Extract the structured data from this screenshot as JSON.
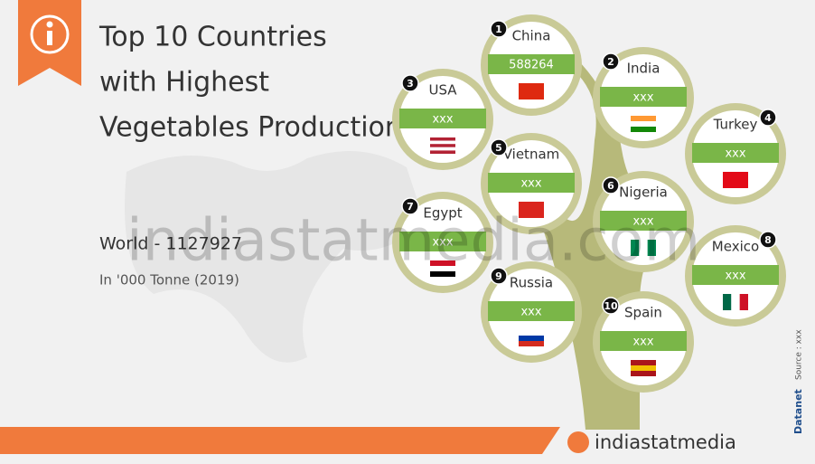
{
  "header": {
    "title_lines": [
      "Top 10 Countries",
      "with Highest",
      "Vegetables Production"
    ]
  },
  "world_total": "World  - 1127927",
  "unit": "In '000 Tonne (2019)",
  "countries": [
    {
      "rank": 1,
      "name": "China",
      "value": "588264"
    },
    {
      "rank": 2,
      "name": "India",
      "value": "xxx"
    },
    {
      "rank": 3,
      "name": "USA",
      "value": "xxx"
    },
    {
      "rank": 4,
      "name": "Turkey",
      "value": "xxx"
    },
    {
      "rank": 5,
      "name": "Vietnam",
      "value": "xxx"
    },
    {
      "rank": 6,
      "name": "Nigeria",
      "value": "xxx"
    },
    {
      "rank": 7,
      "name": "Egypt",
      "value": "xxx"
    },
    {
      "rank": 8,
      "name": "Mexico",
      "value": "xxx"
    },
    {
      "rank": 9,
      "name": "Russia",
      "value": "xxx"
    },
    {
      "rank": 10,
      "name": "Spain",
      "value": "xxx"
    }
  ],
  "watermark": "indiastatmedia.com",
  "footer": {
    "brand": "indiastatmedia",
    "datanet": "Datanet",
    "source": "Source : xxx"
  }
}
